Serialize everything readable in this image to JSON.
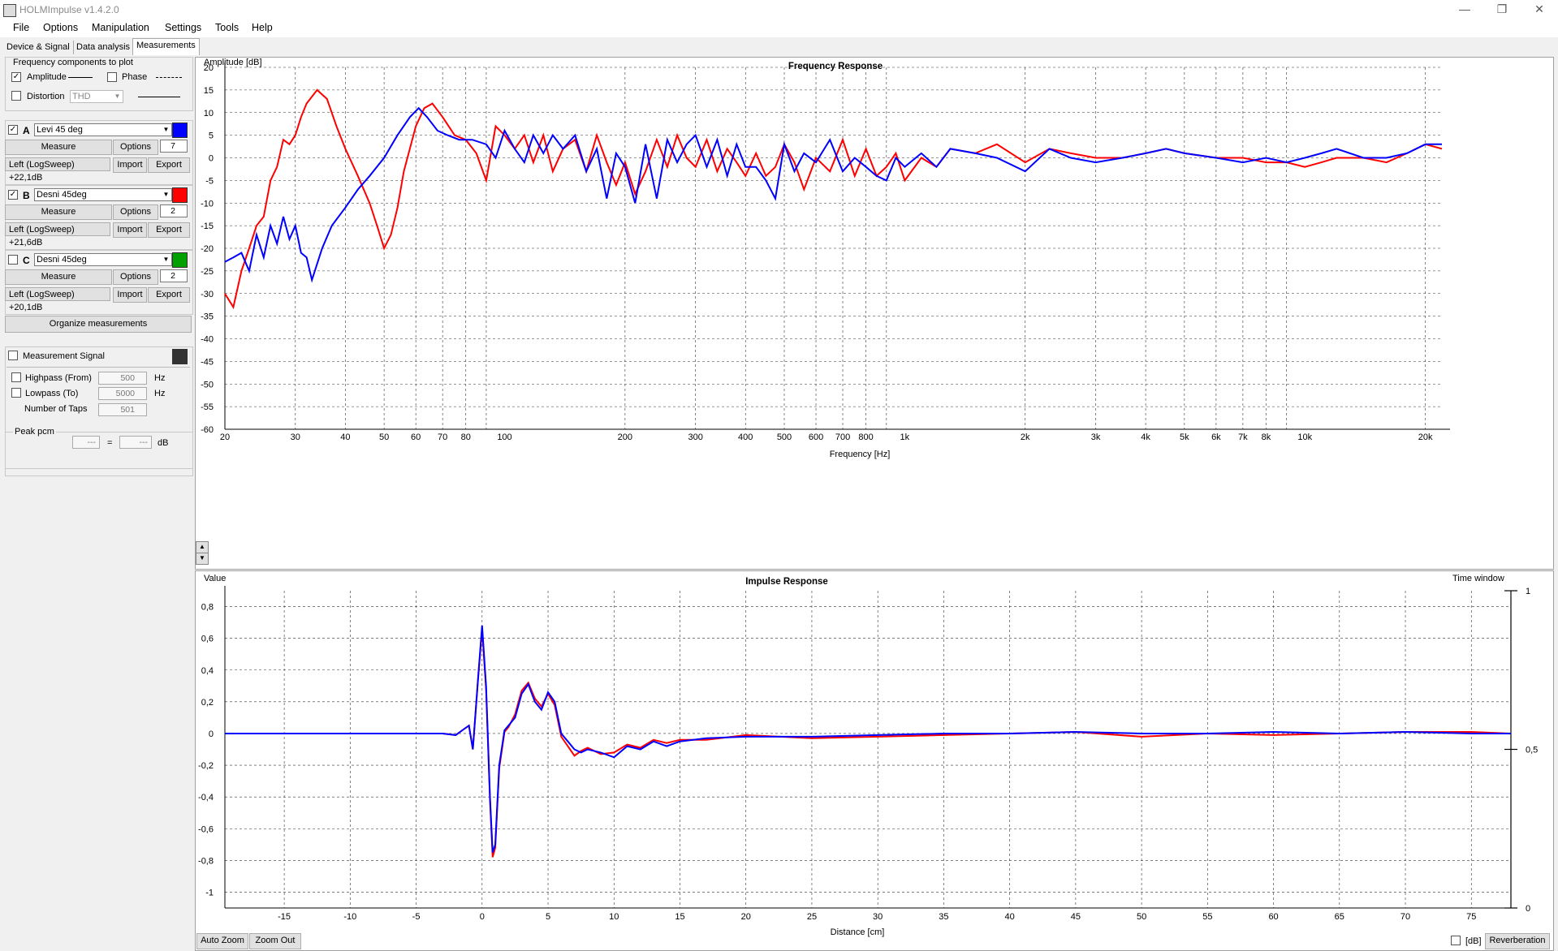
{
  "window": {
    "title": "HOLMImpulse  v1.4.2.0",
    "min": "—",
    "restore": "❐",
    "close": "✕"
  },
  "menu": [
    "File",
    "Options",
    "Manipulation",
    "Settings",
    "Tools",
    "Help"
  ],
  "tabs": [
    "Device & Signal",
    "Data analysis",
    "Measurements"
  ],
  "freq_components": {
    "title": "Frequency components to plot",
    "amplitude": "Amplitude",
    "amplitude_checked": true,
    "phase": "Phase",
    "phase_checked": false,
    "distortion": "Distortion",
    "distortion_checked": false,
    "distortion_select": "THD"
  },
  "measurements": [
    {
      "letter": "A",
      "checked": true,
      "name": "Levi 45 deg",
      "color": "#0000ff",
      "measure": "Measure",
      "options": "Options",
      "spin": "7",
      "info": "Left (LogSweep) +22,1dB",
      "import": "Import",
      "export": "Export"
    },
    {
      "letter": "B",
      "checked": true,
      "name": "Desni 45deg",
      "color": "#ff0000",
      "measure": "Measure",
      "options": "Options",
      "spin": "2",
      "info": "Left (LogSweep) +21,6dB",
      "import": "Import",
      "export": "Export"
    },
    {
      "letter": "C",
      "checked": false,
      "name": "Desni 45deg",
      "color": "#00a000",
      "measure": "Measure",
      "options": "Options",
      "spin": "2",
      "info": "Left (LogSweep) +20,1dB",
      "import": "Import",
      "export": "Export"
    }
  ],
  "organize": "Organize measurements",
  "signal": {
    "label": "Measurement Signal",
    "color": "#333333",
    "highpass": "Highpass (From)",
    "highpass_val": "500",
    "lowpass": "Lowpass (To)",
    "lowpass_val": "5000",
    "hz": "Hz",
    "taps": "Number of Taps",
    "taps_val": "501"
  },
  "peak": {
    "label": "Peak pcm",
    "v1": "---",
    "eq": "=",
    "v2": "---",
    "unit": "dB"
  },
  "freq_chart": {
    "title": "Frequency Response",
    "ylabel": "Amplitude [dB]",
    "xlabel": "Frequency [Hz]",
    "xticks": [
      20,
      30,
      40,
      50,
      60,
      70,
      80,
      100,
      200,
      300,
      400,
      500,
      600,
      700,
      800,
      1000,
      2000,
      3000,
      4000,
      5000,
      6000,
      7000,
      8000,
      10000,
      20000
    ],
    "xtick_labels": [
      "20",
      "30",
      "40",
      "50",
      "60",
      "70",
      "80",
      "100",
      "200",
      "300",
      "400",
      "500",
      "600",
      "700",
      "800",
      "1k",
      "2k",
      "3k",
      "4k",
      "5k",
      "6k",
      "7k",
      "8k",
      "10k",
      "20k"
    ],
    "yticks": [
      "20",
      "15",
      "10",
      "5",
      "0",
      "-5",
      "-10",
      "-15",
      "-20",
      "-25",
      "-30",
      "-35",
      "-40",
      "-45",
      "-50",
      "-55",
      "-60"
    ]
  },
  "impulse_chart": {
    "title": "Impulse Response",
    "ylabel": "Value",
    "xlabel": "Distance [cm]",
    "window_label": "Time window",
    "yticks": [
      "0,8",
      "0,6",
      "0,4",
      "0,2",
      "0",
      "-0,2",
      "-0,4",
      "-0,6",
      "-0,8",
      "-1"
    ],
    "xticks": [
      "-15",
      "-10",
      "-5",
      "0",
      "5",
      "10",
      "15",
      "20",
      "25",
      "30",
      "35",
      "40",
      "45",
      "50",
      "55",
      "60",
      "65",
      "70",
      "75"
    ],
    "win_ticks": [
      "1",
      "0,5",
      "0"
    ],
    "auto_zoom": "Auto Zoom",
    "zoom_out": "Zoom Out",
    "db": "[dB]",
    "reverberation": "Reverberation"
  },
  "chart_data": [
    {
      "type": "line",
      "title": "Frequency Response",
      "xlabel": "Frequency [Hz]",
      "ylabel": "Amplitude [dB]",
      "xscale": "log",
      "xlim": [
        20,
        22000
      ],
      "ylim": [
        -60,
        20
      ],
      "grid": true,
      "series": [
        {
          "name": "Levi 45 deg",
          "color": "#0000ff",
          "x": [
            20,
            21,
            22,
            23,
            24,
            25,
            26,
            27,
            28,
            29,
            30,
            31,
            32,
            33,
            35,
            37,
            40,
            43,
            46,
            50,
            54,
            58,
            61,
            64,
            68,
            72,
            77,
            83,
            90,
            95,
            100,
            106,
            112,
            118,
            125,
            132,
            140,
            150,
            160,
            170,
            180,
            190,
            200,
            212,
            225,
            240,
            255,
            270,
            285,
            300,
            320,
            340,
            360,
            380,
            400,
            425,
            450,
            475,
            500,
            530,
            560,
            600,
            650,
            700,
            750,
            800,
            850,
            900,
            950,
            1000,
            1100,
            1200,
            1300,
            1500,
            1700,
            2000,
            2300,
            2600,
            3000,
            3500,
            4000,
            4500,
            5000,
            6000,
            7000,
            8000,
            9000,
            10000,
            11000,
            12000,
            14000,
            16000,
            18000,
            20000,
            22000
          ],
          "y": [
            -23,
            -22,
            -21,
            -25,
            -17,
            -22,
            -15,
            -19,
            -13,
            -18,
            -15,
            -21,
            -22,
            -27,
            -20,
            -15,
            -11,
            -7,
            -4,
            0,
            5,
            9,
            11,
            9,
            6,
            5,
            4,
            4,
            3,
            0,
            6,
            2,
            -1,
            5,
            1,
            5,
            2,
            5,
            -3,
            2,
            -9,
            1,
            -2,
            -10,
            3,
            -9,
            4,
            -1,
            3,
            5,
            -2,
            4,
            -4,
            3,
            -2,
            -2,
            -5,
            -9,
            3,
            -3,
            1,
            -1,
            4,
            -3,
            0,
            -2,
            -4,
            -5,
            0,
            -2,
            1,
            -2,
            2,
            1,
            0,
            -3,
            2,
            0,
            -1,
            0,
            1,
            2,
            1,
            0,
            -1,
            0,
            -1,
            0,
            1,
            2,
            0,
            0,
            1,
            3,
            3
          ]
        },
        {
          "name": "Desni 45deg",
          "color": "#ff0000",
          "x": [
            20,
            21,
            22,
            23,
            24,
            25,
            26,
            27,
            28,
            29,
            30,
            31,
            32,
            34,
            36,
            38,
            40,
            43,
            46,
            48,
            50,
            52,
            54,
            56,
            60,
            63,
            66,
            70,
            75,
            80,
            85,
            90,
            95,
            100,
            106,
            112,
            118,
            125,
            132,
            140,
            150,
            160,
            170,
            180,
            190,
            200,
            212,
            225,
            240,
            255,
            270,
            285,
            300,
            320,
            340,
            360,
            380,
            400,
            425,
            450,
            475,
            500,
            530,
            560,
            600,
            650,
            700,
            750,
            800,
            850,
            900,
            950,
            1000,
            1100,
            1200,
            1300,
            1500,
            1700,
            2000,
            2300,
            2600,
            3000,
            3500,
            4000,
            4500,
            5000,
            6000,
            7000,
            8000,
            9000,
            10000,
            11000,
            12000,
            14000,
            16000,
            18000,
            20000,
            22000
          ],
          "y": [
            -30,
            -33,
            -25,
            -20,
            -15,
            -13,
            -5,
            -2,
            4,
            3,
            5,
            9,
            12,
            15,
            13,
            7,
            2,
            -4,
            -10,
            -15,
            -20,
            -17,
            -11,
            -3,
            7,
            11,
            12,
            9,
            5,
            4,
            1,
            -5,
            7,
            5,
            2,
            5,
            -1,
            5,
            -3,
            2,
            4,
            -3,
            5,
            -1,
            -6,
            -1,
            -8,
            -3,
            4,
            -2,
            5,
            0,
            -2,
            4,
            -3,
            2,
            -1,
            -4,
            1,
            -4,
            -2,
            3,
            -1,
            -7,
            0,
            -3,
            4,
            -4,
            2,
            -4,
            -2,
            1,
            -5,
            0,
            -2,
            2,
            1,
            3,
            -1,
            2,
            1,
            0,
            0,
            1,
            2,
            1,
            0,
            0,
            -1,
            -1,
            -2,
            -1,
            0,
            0,
            -1,
            1,
            3,
            2
          ]
        }
      ]
    },
    {
      "type": "line",
      "title": "Impulse Response",
      "xlabel": "Distance [cm]",
      "ylabel": "Value",
      "xlim": [
        -19.5,
        78
      ],
      "ylim": [
        -1.1,
        0.9
      ],
      "grid": true,
      "series": [
        {
          "name": "Levi 45 deg",
          "color": "#0000ff",
          "x": [
            -19.5,
            -15,
            -10,
            -5,
            -3,
            -2,
            -1.5,
            -1,
            -0.7,
            -0.3,
            0,
            0.3,
            0.6,
            0.8,
            1,
            1.3,
            1.7,
            2,
            2.5,
            3,
            3.5,
            4,
            4.5,
            5,
            5.5,
            6,
            6.5,
            7,
            7.5,
            8,
            9,
            10,
            11,
            12,
            13,
            14,
            15,
            17,
            20,
            25,
            30,
            35,
            40,
            45,
            50,
            55,
            60,
            65,
            70,
            75,
            78
          ],
          "y": [
            0,
            0,
            0,
            0,
            0,
            -0.01,
            0.02,
            0.05,
            -0.1,
            0.35,
            0.68,
            0.3,
            -0.4,
            -0.75,
            -0.7,
            -0.2,
            0.02,
            0.05,
            0.1,
            0.25,
            0.31,
            0.2,
            0.15,
            0.26,
            0.2,
            0,
            -0.05,
            -0.1,
            -0.12,
            -0.1,
            -0.12,
            -0.15,
            -0.08,
            -0.1,
            -0.05,
            -0.08,
            -0.05,
            -0.03,
            -0.02,
            -0.02,
            -0.01,
            0,
            0,
            0.01,
            0,
            0,
            0.01,
            0,
            0.01,
            0,
            0
          ]
        },
        {
          "name": "Desni 45deg",
          "color": "#ff0000",
          "x": [
            -19.5,
            -15,
            -10,
            -5,
            -3,
            -2,
            -1.5,
            -1,
            -0.7,
            -0.3,
            0,
            0.3,
            0.6,
            0.8,
            1,
            1.3,
            1.7,
            2,
            2.5,
            3,
            3.5,
            4,
            4.5,
            5,
            5.5,
            6,
            6.5,
            7,
            7.5,
            8,
            9,
            10,
            11,
            12,
            13,
            14,
            15,
            17,
            20,
            25,
            30,
            35,
            40,
            45,
            50,
            55,
            60,
            65,
            70,
            75,
            78
          ],
          "y": [
            0,
            0,
            0,
            0,
            0,
            -0.01,
            0.02,
            0.05,
            -0.1,
            0.35,
            0.66,
            0.28,
            -0.42,
            -0.78,
            -0.72,
            -0.22,
            0.01,
            0.04,
            0.12,
            0.27,
            0.32,
            0.22,
            0.17,
            0.25,
            0.18,
            -0.02,
            -0.08,
            -0.14,
            -0.11,
            -0.09,
            -0.13,
            -0.12,
            -0.07,
            -0.09,
            -0.04,
            -0.06,
            -0.04,
            -0.04,
            -0.01,
            -0.03,
            -0.02,
            -0.01,
            0,
            0.01,
            -0.02,
            0,
            -0.01,
            0,
            0.01,
            0.01,
            0
          ]
        }
      ]
    }
  ]
}
